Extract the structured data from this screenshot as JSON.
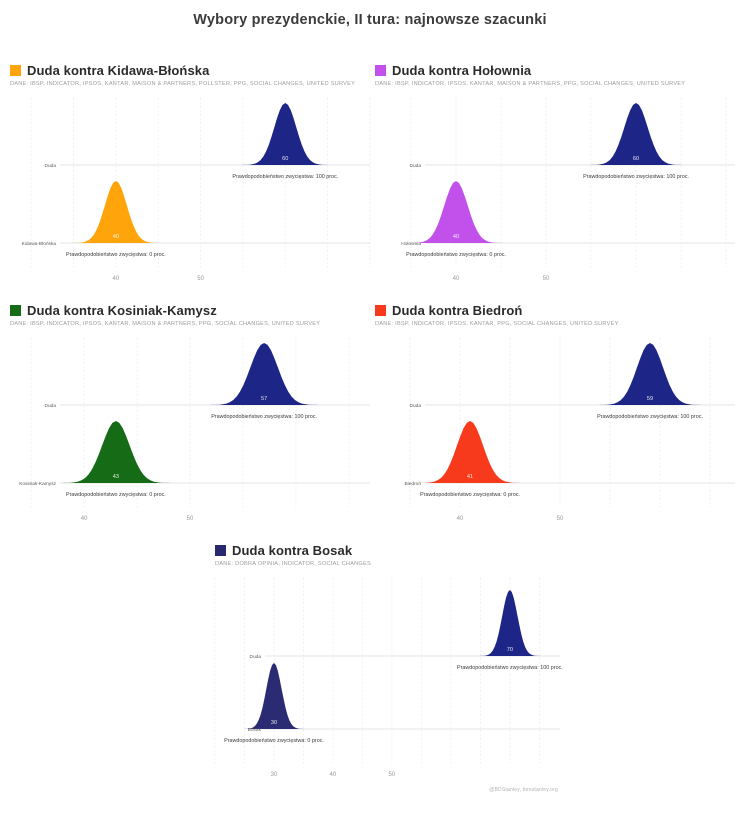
{
  "page": {
    "title": "Wybory prezydenckie, II tura: najnowsze szacunki",
    "watermark": "@BDStanley, benstanley.org"
  },
  "chart_data": [
    {
      "type": "area",
      "variant": "ridgeline-density",
      "title": "Duda kontra Kidawa-Błońska",
      "source": "DANE: IBSP, INDICATOR, IPSOS, KANTAR, MAISON & PARTNERS, POLLSTER, PPG, SOCIAL CHANGES, UNITED SURVEY",
      "accent": "#FFA40B",
      "xlim": [
        27.5,
        70
      ],
      "xticks": [
        40,
        50
      ],
      "grid_step": 5,
      "series": [
        {
          "name": "Duda",
          "value": 60,
          "sigma": 1.3,
          "color": "#1D2586",
          "caption": "Prawdopodobieństwo zwycięstwa: 100 proc."
        },
        {
          "name": "Kidawa-Błońska",
          "value": 40,
          "sigma": 1.3,
          "color": "#FFA40B",
          "caption": "Prawdopodobieństwo zwycięstwa: 0 proc."
        }
      ]
    },
    {
      "type": "area",
      "variant": "ridgeline-density",
      "title": "Duda kontra Hołownia",
      "source": "DANE: IBSP, INDICATOR, IPSOS, KANTAR, MAISON & PARTNERS, PPG, SOCIAL CHANGES, UNITED SURVEY",
      "accent": "#C251EC",
      "xlim": [
        31,
        71
      ],
      "xticks": [
        40,
        50
      ],
      "grid_step": 5,
      "series": [
        {
          "name": "Duda",
          "value": 60,
          "sigma": 1.3,
          "color": "#1D2586",
          "caption": "Prawdopodobieństwo zwycięstwa: 100 proc."
        },
        {
          "name": "Hołownia",
          "value": 40,
          "sigma": 1.3,
          "color": "#C251EC",
          "caption": "Prawdopodobieństwo zwycięstwa: 0 proc."
        }
      ]
    },
    {
      "type": "area",
      "variant": "ridgeline-density",
      "title": "Duda kontra Kosiniak-Kamysz",
      "source": "DANE: IBSP, INDICATOR, IPSOS, KANTAR, MAISON & PARTNERS, PPG, SOCIAL CHANGES, UNITED SURVEY",
      "accent": "#166B16",
      "xlim": [
        33,
        67
      ],
      "xticks": [
        40,
        50
      ],
      "grid_step": 5,
      "series": [
        {
          "name": "Duda",
          "value": 57,
          "sigma": 1.3,
          "color": "#1D2586",
          "caption": "Prawdopodobieństwo zwycięstwa: 100 proc."
        },
        {
          "name": "Kosiniak-Kamysz",
          "value": 43,
          "sigma": 1.3,
          "color": "#166B16",
          "caption": "Prawdopodobieństwo zwycięstwa: 0 proc."
        }
      ]
    },
    {
      "type": "area",
      "variant": "ridgeline-density",
      "title": "Duda kontra Biedroń",
      "source": "DANE: IBSP, INDICATOR, IPSOS, KANTAR, PPG, SOCIAL CHANGES, UNITED SURVEY",
      "accent": "#F73A1C",
      "xlim": [
        31.5,
        67.5
      ],
      "xticks": [
        40,
        50
      ],
      "grid_step": 5,
      "series": [
        {
          "name": "Duda",
          "value": 59,
          "sigma": 1.3,
          "color": "#1D2586",
          "caption": "Prawdopodobieństwo zwycięstwa: 100 proc."
        },
        {
          "name": "Biedroń",
          "value": 41,
          "sigma": 1.3,
          "color": "#F73A1C",
          "caption": "Prawdopodobieństwo zwycięstwa: 0 proc."
        }
      ]
    },
    {
      "type": "area",
      "variant": "ridgeline-density",
      "title": "Duda kontra Bosak",
      "source": "DANE: DOBRA OPINIA, INDICATOR, SOCIAL CHANGES",
      "accent": "#28286E",
      "xlim": [
        20,
        78.5
      ],
      "xticks": [
        30,
        40,
        50
      ],
      "grid_step": 5,
      "series": [
        {
          "name": "Duda",
          "value": 70,
          "sigma": 1.3,
          "color": "#1D2586",
          "caption": "Prawdopodobieństwo zwycięstwa: 100 proc."
        },
        {
          "name": "Bosak",
          "value": 30,
          "sigma": 1.3,
          "color": "#2B2B74",
          "caption": "Prawdopodobieństwo zwycięstwa: 0 proc."
        }
      ]
    }
  ]
}
